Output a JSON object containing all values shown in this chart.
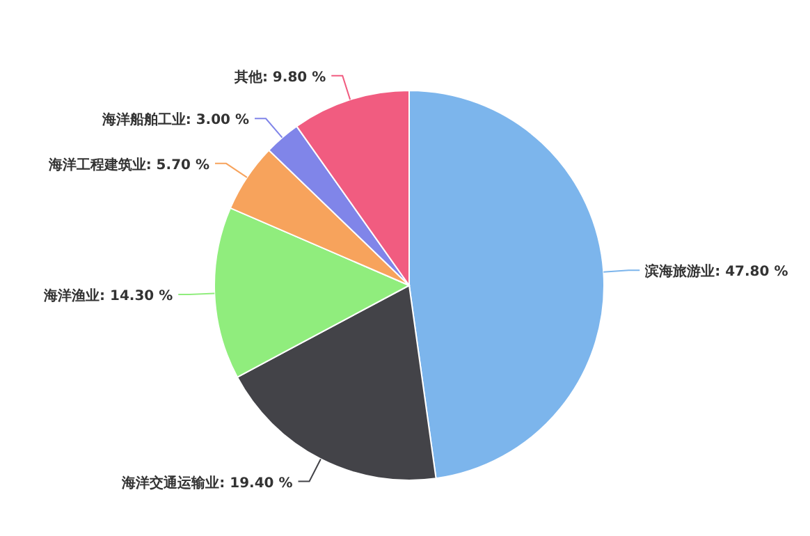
{
  "chart_data": {
    "type": "pie",
    "categories": [
      "滨海旅游业",
      "海洋交通运输业",
      "海洋渔业",
      "海洋工程建筑业",
      "海洋船舶工业",
      "其他"
    ],
    "values": [
      47.8,
      19.4,
      14.3,
      5.7,
      3.0,
      9.8
    ],
    "colors": [
      "#7cb5ec",
      "#434348",
      "#90ed7d",
      "#f7a35c",
      "#8085e9",
      "#f15c80"
    ],
    "value_labels": [
      "47.80 %",
      "19.40 %",
      "14.30 %",
      "5.70 %",
      "3.00 %",
      "9.80 %"
    ]
  }
}
